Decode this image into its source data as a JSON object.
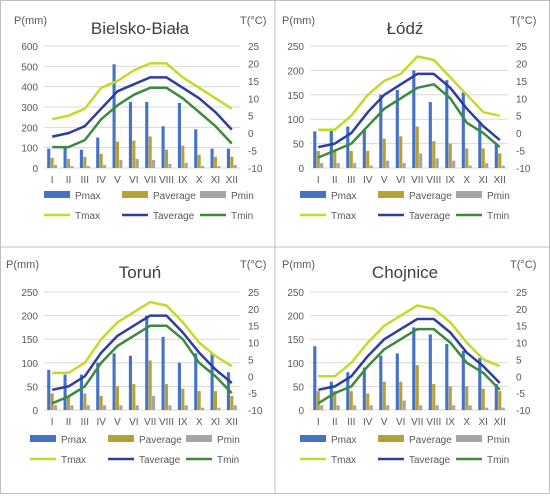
{
  "months": [
    "I",
    "II",
    "III",
    "IV",
    "V",
    "VI",
    "VII",
    "VIII",
    "IX",
    "X",
    "XI",
    "XII"
  ],
  "legend": {
    "pmax": "Pmax",
    "paverage": "Paverage",
    "pmin": "Pmin",
    "tmax": "Tmax",
    "taverage": "Taverage",
    "tmin": "Tmin"
  },
  "colors": {
    "pmax": "#4472C4",
    "paverage": "#B8A038",
    "pmin": "#A6A6A6",
    "tmax": "#C6D92B",
    "taverage": "#2E3E9E",
    "tmin": "#3C8A3E",
    "grid": "#D9D9D9",
    "axis_text": "#595959"
  },
  "chart_data": [
    {
      "type": "bar",
      "title": "Bielsko-Biała",
      "ylabel_left": "P(mm)",
      "ylabel_right": "T(°C)",
      "ylim_left": [
        0,
        600
      ],
      "ylim_right": [
        -10,
        25
      ],
      "yticks_left": [
        0,
        100,
        200,
        300,
        400,
        500,
        600
      ],
      "yticks_right": [
        -10,
        -5,
        0,
        5,
        10,
        15,
        20,
        25
      ],
      "categories": [
        "I",
        "II",
        "III",
        "IV",
        "V",
        "VI",
        "VII",
        "VIII",
        "IX",
        "X",
        "XI",
        "XII"
      ],
      "series": [
        {
          "name": "Pmax",
          "values": [
            95,
            100,
            90,
            150,
            510,
            325,
            325,
            205,
            320,
            190,
            95,
            95
          ]
        },
        {
          "name": "Paverage",
          "values": [
            50,
            45,
            55,
            70,
            130,
            135,
            155,
            90,
            110,
            65,
            55,
            55
          ]
        },
        {
          "name": "Pmin",
          "values": [
            15,
            10,
            10,
            15,
            40,
            45,
            40,
            20,
            25,
            10,
            10,
            15
          ]
        },
        {
          "name": "Tmax",
          "values": [
            4,
            5,
            7,
            13,
            15,
            18,
            20,
            20,
            16,
            13,
            10,
            7
          ]
        },
        {
          "name": "Taverage",
          "values": [
            -1,
            0,
            2,
            7,
            12,
            14,
            16,
            16,
            13,
            10,
            6,
            1
          ]
        },
        {
          "name": "Tmin",
          "values": [
            -4,
            -4,
            -2,
            4,
            8,
            11,
            13,
            13,
            10,
            6,
            2,
            -3
          ]
        }
      ]
    },
    {
      "type": "bar",
      "title": "Łódź",
      "ylabel_left": "P(mm)",
      "ylabel_right": "T(°C)",
      "ylim_left": [
        0,
        250
      ],
      "ylim_right": [
        -10,
        25
      ],
      "yticks_left": [
        0,
        50,
        100,
        150,
        200,
        250
      ],
      "yticks_right": [
        -10,
        -5,
        0,
        5,
        10,
        15,
        20,
        25
      ],
      "categories": [
        "I",
        "II",
        "III",
        "IV",
        "V",
        "VI",
        "VII",
        "VIII",
        "IX",
        "X",
        "XI",
        "XII"
      ],
      "series": [
        {
          "name": "Pmax",
          "values": [
            75,
            80,
            85,
            80,
            150,
            160,
            200,
            135,
            180,
            155,
            95,
            50
          ]
        },
        {
          "name": "Paverage",
          "values": [
            35,
            35,
            35,
            35,
            60,
            65,
            85,
            55,
            50,
            40,
            40,
            30
          ]
        },
        {
          "name": "Pmin",
          "values": [
            10,
            10,
            10,
            5,
            15,
            10,
            30,
            20,
            15,
            5,
            10,
            5
          ]
        },
        {
          "name": "Tmax",
          "values": [
            1,
            1,
            5,
            11,
            15,
            17,
            22,
            21,
            16,
            11,
            6,
            5
          ]
        },
        {
          "name": "Taverage",
          "values": [
            -4,
            -3,
            0,
            6,
            11,
            14,
            17,
            17,
            13,
            7,
            2,
            -2
          ]
        },
        {
          "name": "Tmin",
          "values": [
            -7,
            -5,
            -3,
            2,
            7,
            10,
            13,
            14,
            10,
            3,
            0,
            -4
          ]
        }
      ]
    },
    {
      "type": "bar",
      "title": "Toruń",
      "ylabel_left": "P(mm)",
      "ylabel_right": "T(°C)",
      "ylim_left": [
        0,
        250
      ],
      "ylim_right": [
        -10,
        25
      ],
      "yticks_left": [
        0,
        50,
        100,
        150,
        200,
        250
      ],
      "yticks_right": [
        -10,
        -5,
        0,
        5,
        10,
        15,
        20,
        25
      ],
      "categories": [
        "I",
        "II",
        "III",
        "IV",
        "V",
        "VI",
        "VII",
        "VIII",
        "IX",
        "X",
        "XI",
        "XII"
      ],
      "series": [
        {
          "name": "Pmax",
          "values": [
            85,
            75,
            75,
            100,
            120,
            115,
            200,
            155,
            100,
            120,
            120,
            80
          ]
        },
        {
          "name": "Paverage",
          "values": [
            35,
            30,
            35,
            30,
            50,
            55,
            105,
            55,
            45,
            40,
            40,
            30
          ]
        },
        {
          "name": "Pmin",
          "values": [
            10,
            10,
            10,
            10,
            10,
            10,
            30,
            10,
            10,
            5,
            5,
            10
          ]
        },
        {
          "name": "Tmax",
          "values": [
            1,
            1,
            4,
            11,
            16,
            19,
            22,
            21,
            16,
            10,
            6,
            3
          ]
        },
        {
          "name": "Taverage",
          "values": [
            -4,
            -3,
            0,
            7,
            12,
            15,
            18,
            18,
            13,
            7,
            2,
            -2
          ]
        },
        {
          "name": "Tmin",
          "values": [
            -8,
            -6,
            -3,
            4,
            9,
            12,
            15,
            15,
            11,
            4,
            0,
            -5
          ]
        }
      ]
    },
    {
      "type": "bar",
      "title": "Chojnice",
      "ylabel_left": "P(mm)",
      "ylabel_right": "T(°C)",
      "ylim_left": [
        0,
        250
      ],
      "ylim_right": [
        -10,
        25
      ],
      "yticks_left": [
        0,
        50,
        100,
        150,
        200,
        250
      ],
      "yticks_right": [
        -10,
        -5,
        0,
        5,
        10,
        15,
        20,
        25
      ],
      "categories": [
        "I",
        "II",
        "III",
        "IV",
        "V",
        "VI",
        "VII",
        "VIII",
        "IX",
        "X",
        "XI",
        "XII"
      ],
      "series": [
        {
          "name": "Pmax",
          "values": [
            135,
            60,
            80,
            90,
            115,
            120,
            175,
            160,
            140,
            125,
            110,
            55
          ]
        },
        {
          "name": "Paverage",
          "values": [
            40,
            40,
            40,
            35,
            60,
            60,
            95,
            55,
            50,
            50,
            45,
            40
          ]
        },
        {
          "name": "Pmin",
          "values": [
            10,
            10,
            10,
            10,
            10,
            20,
            10,
            10,
            10,
            10,
            5,
            5
          ]
        },
        {
          "name": "Tmax",
          "values": [
            0,
            0,
            4,
            10,
            15,
            18,
            21,
            20,
            16,
            10,
            5,
            3
          ]
        },
        {
          "name": "Taverage",
          "values": [
            -4,
            -3,
            0,
            6,
            11,
            14,
            17,
            17,
            13,
            7,
            3,
            -2
          ]
        },
        {
          "name": "Tmin",
          "values": [
            -8,
            -5,
            -3,
            3,
            8,
            11,
            14,
            14,
            10,
            4,
            1,
            -4
          ]
        }
      ]
    }
  ]
}
